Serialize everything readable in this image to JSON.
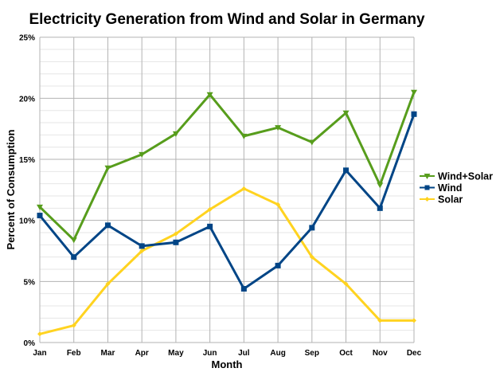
{
  "chart_data": {
    "type": "line",
    "title": "Electricity Generation from Wind and Solar in Germany",
    "xlabel": "Month",
    "ylabel": "Percent of Consumption",
    "categories": [
      "Jan",
      "Feb",
      "Mar",
      "Apr",
      "May",
      "Jun",
      "Jul",
      "Aug",
      "Sep",
      "Oct",
      "Nov",
      "Dec"
    ],
    "ylim": [
      0,
      25
    ],
    "yticks": [
      "0%",
      "5%",
      "10%",
      "15%",
      "20%",
      "25%"
    ],
    "grid": true,
    "legend_position": "right",
    "series": [
      {
        "name": "Wind+Solar",
        "color": "#579d1c",
        "marker": "triangle-down",
        "values": [
          11.1,
          8.4,
          14.3,
          15.4,
          17.1,
          20.3,
          16.9,
          17.6,
          16.4,
          18.8,
          12.9,
          20.5
        ]
      },
      {
        "name": "Wind",
        "color": "#004586",
        "marker": "square",
        "values": [
          10.4,
          7.0,
          9.6,
          7.9,
          8.2,
          9.5,
          4.4,
          6.3,
          9.4,
          14.1,
          11.0,
          18.7
        ]
      },
      {
        "name": "Solar",
        "color": "#ffd320",
        "marker": "diamond",
        "values": [
          0.7,
          1.4,
          4.8,
          7.5,
          8.9,
          10.9,
          12.6,
          11.3,
          7.0,
          4.8,
          1.8,
          1.8
        ]
      }
    ]
  }
}
